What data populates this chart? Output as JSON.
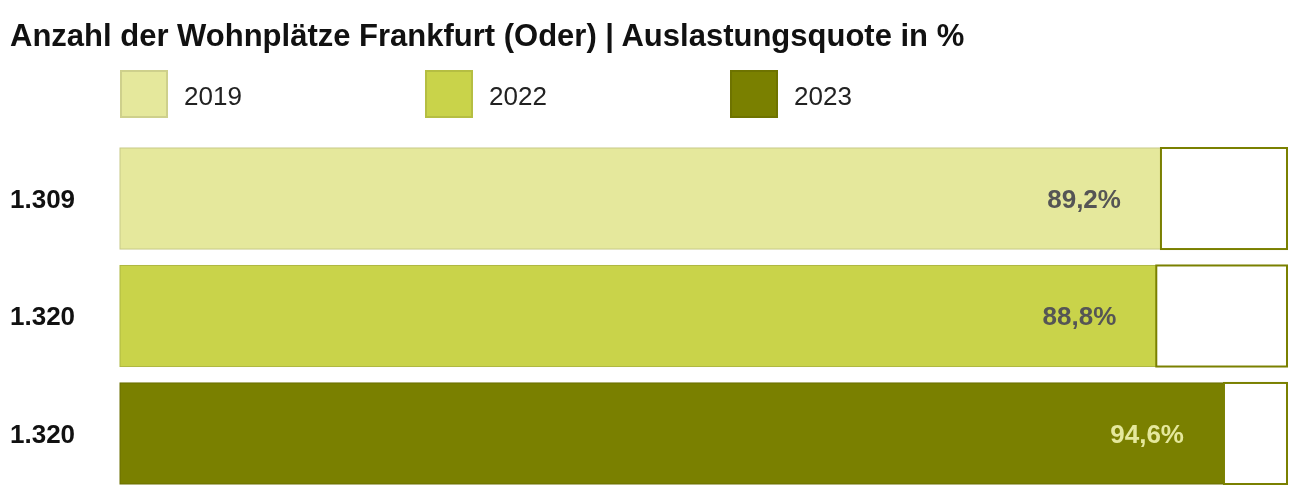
{
  "chart_data": {
    "type": "bar",
    "orientation": "horizontal",
    "title": "Anzahl der Wohnplätze Frankfurt (Oder) | Auslastungsquote in %",
    "categories": [
      "1.309",
      "1.320",
      "1.320"
    ],
    "xlim": [
      0,
      100
    ],
    "tick_labels": "y",
    "legend": "top",
    "series": [
      {
        "name": "2019",
        "color": "#e5e89c",
        "values": [
          89.2,
          null,
          null
        ],
        "value_labels": [
          "89,2%",
          null,
          null
        ]
      },
      {
        "name": "2022",
        "color": "#c9d34a",
        "values": [
          null,
          88.8,
          null
        ],
        "value_labels": [
          null,
          "88,8%",
          null
        ]
      },
      {
        "name": "2023",
        "color": "#7a8000",
        "values": [
          null,
          null,
          94.6
        ],
        "value_labels": [
          null,
          null,
          "94,6%"
        ]
      },
      {
        "color": "#ffffff",
        "values": [
          10.8,
          11.2,
          5.4
        ]
      }
    ],
    "stacked": true
  }
}
